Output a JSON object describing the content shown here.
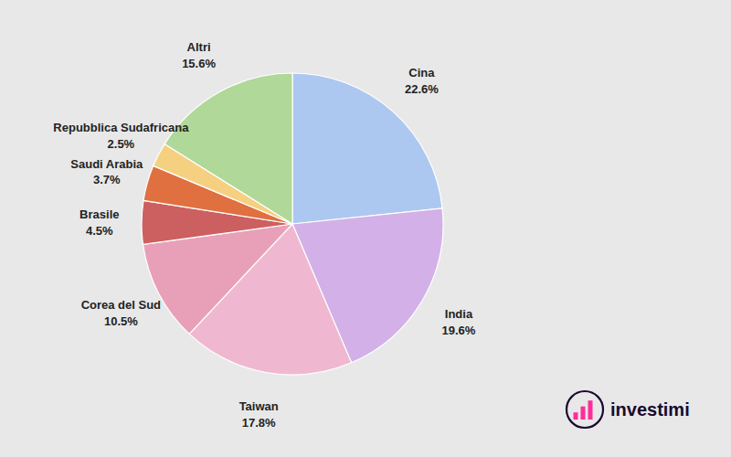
{
  "chart_data": {
    "type": "pie",
    "categories": [
      "Cina",
      "India",
      "Taiwan",
      "Corea del Sud",
      "Brasile",
      "Saudi Arabia",
      "Repubblica Sudafricana",
      "Altri"
    ],
    "values": [
      22.6,
      19.6,
      17.8,
      10.5,
      4.5,
      3.7,
      2.5,
      15.6
    ],
    "value_labels": [
      "22.6%",
      "19.6%",
      "17.8%",
      "10.5%",
      "4.5%",
      "3.7%",
      "2.5%",
      "15.6%"
    ],
    "colors": [
      "#adc8f0",
      "#d4b0e8",
      "#f0b8d0",
      "#e8a0b8",
      "#cc6060",
      "#e07040",
      "#f5d080",
      "#b0d898"
    ],
    "data_labels": true,
    "annotations": [
      {
        "text": "investimi"
      }
    ]
  }
}
